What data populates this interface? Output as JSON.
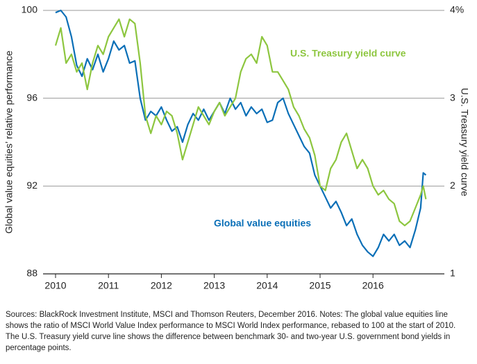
{
  "chart_data": {
    "type": "line",
    "y_label": "Global value equities’ relative performance",
    "y2_label": "U.S. Treasury yield curve",
    "annotations": [
      "U.S. Treasury yield curve",
      "Global value equities"
    ],
    "x": [
      2010.0,
      2010.1,
      2010.2,
      2010.3,
      2010.4,
      2010.5,
      2010.6,
      2010.7,
      2010.8,
      2010.9,
      2011.0,
      2011.1,
      2011.2,
      2011.3,
      2011.4,
      2011.5,
      2011.6,
      2011.7,
      2011.8,
      2011.9,
      2012.0,
      2012.1,
      2012.2,
      2012.3,
      2012.4,
      2012.5,
      2012.6,
      2012.7,
      2012.8,
      2012.9,
      2013.0,
      2013.1,
      2013.2,
      2013.3,
      2013.4,
      2013.5,
      2013.6,
      2013.7,
      2013.8,
      2013.9,
      2014.0,
      2014.1,
      2014.2,
      2014.3,
      2014.4,
      2014.5,
      2014.6,
      2014.7,
      2014.8,
      2014.9,
      2015.0,
      2015.1,
      2015.2,
      2015.3,
      2015.4,
      2015.5,
      2015.6,
      2015.7,
      2015.8,
      2015.9,
      2016.0,
      2016.1,
      2016.2,
      2016.3,
      2016.4,
      2016.5,
      2016.6,
      2016.7,
      2016.8,
      2016.9,
      2016.95,
      2017.0
    ],
    "series": [
      {
        "name": "Global value equities",
        "color": "#0a6fb7",
        "axis": "y",
        "values": [
          99.9,
          100,
          99.7,
          98.8,
          97.5,
          97.0,
          97.8,
          97.3,
          98.0,
          97.2,
          97.8,
          98.6,
          98.2,
          98.4,
          97.6,
          97.7,
          96.0,
          95.0,
          95.4,
          95.2,
          95.6,
          95.0,
          94.5,
          94.7,
          94.0,
          94.8,
          95.3,
          95.0,
          95.5,
          95.0,
          95.4,
          95.8,
          95.3,
          96.0,
          95.5,
          95.8,
          95.2,
          95.6,
          95.3,
          95.5,
          94.9,
          95.0,
          95.8,
          96.0,
          95.3,
          94.8,
          94.3,
          93.8,
          93.5,
          92.5,
          92.0,
          91.5,
          91.0,
          91.3,
          90.8,
          90.2,
          90.5,
          89.8,
          89.3,
          89.0,
          88.8,
          89.2,
          89.8,
          89.5,
          89.8,
          89.3,
          89.5,
          89.2,
          90.0,
          91.0,
          92.6,
          92.5
        ]
      },
      {
        "name": "U.S. Treasury yield curve",
        "color": "#8dc63f",
        "axis": "y2",
        "values": [
          3.6,
          3.8,
          3.4,
          3.5,
          3.3,
          3.4,
          3.1,
          3.4,
          3.6,
          3.5,
          3.7,
          3.8,
          3.9,
          3.7,
          3.9,
          3.85,
          3.4,
          2.8,
          2.6,
          2.8,
          2.7,
          2.85,
          2.8,
          2.6,
          2.3,
          2.5,
          2.7,
          2.9,
          2.8,
          2.7,
          2.85,
          2.95,
          2.8,
          2.9,
          3.0,
          3.3,
          3.45,
          3.5,
          3.4,
          3.7,
          3.6,
          3.3,
          3.3,
          3.2,
          3.1,
          2.9,
          2.8,
          2.65,
          2.55,
          2.35,
          2.0,
          1.95,
          2.2,
          2.3,
          2.5,
          2.6,
          2.4,
          2.2,
          2.3,
          2.2,
          2.0,
          1.9,
          1.95,
          1.85,
          1.8,
          1.6,
          1.55,
          1.6,
          1.75,
          1.9,
          2.0,
          1.85
        ]
      }
    ],
    "xlim": [
      2010,
      2017.3
    ],
    "xticks": [
      2010,
      2011,
      2012,
      2013,
      2014,
      2015,
      2016
    ],
    "ylim": [
      88,
      100
    ],
    "yticks": [
      88,
      92,
      96,
      100
    ],
    "y2lim": [
      1,
      4
    ],
    "y2ticks": [
      1,
      2,
      3,
      {
        "value": 4,
        "label": "4%"
      }
    ],
    "grid": true,
    "footnote": [
      "Sources: BlackRock Investment Institute, MSCI and Thomson Reuters, December 2016. Notes: The global value equities line",
      "shows the ratio of MSCI World Value Index performance to MSCI World Index performance, rebased to 100 at the start of 2010.",
      "The U.S. Treasury yield curve line shows the difference between benchmark 30- and two-year U.S. government bond yields in",
      "percentage points."
    ]
  }
}
